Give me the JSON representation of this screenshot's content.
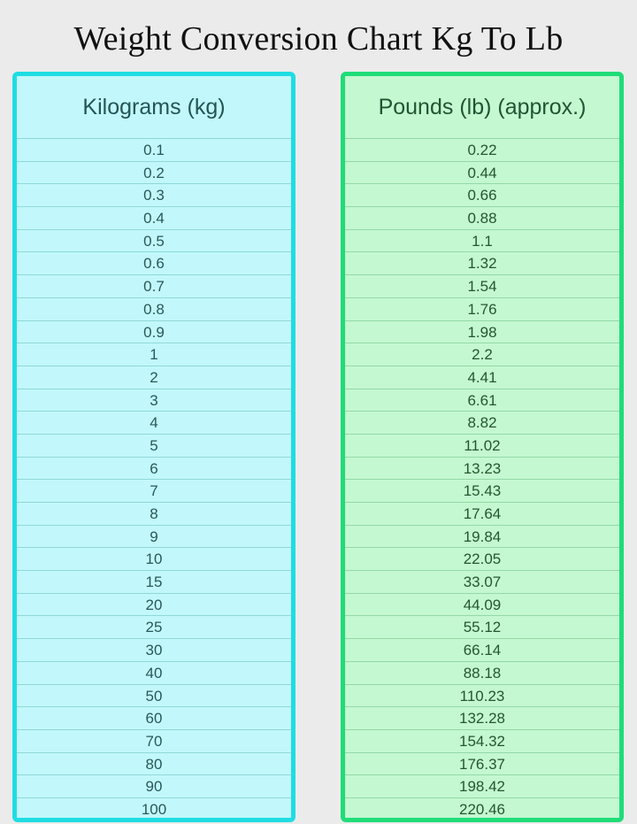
{
  "title": "Weight Conversion Chart Kg To Lb",
  "colors": {
    "kg_border": "#1fdde3",
    "kg_fill": "#c2f8fb",
    "lb_border": "#20dc78",
    "lb_fill": "#c4f8d1"
  },
  "columns": {
    "kg": {
      "header": "Kilograms (kg)",
      "values": [
        "0.1",
        "0.2",
        "0.3",
        "0.4",
        "0.5",
        "0.6",
        "0.7",
        "0.8",
        "0.9",
        "1",
        "2",
        "3",
        "4",
        "5",
        "6",
        "7",
        "8",
        "9",
        "10",
        "15",
        "20",
        "25",
        "30",
        "40",
        "50",
        "60",
        "70",
        "80",
        "90",
        "100"
      ]
    },
    "lb": {
      "header": "Pounds (lb) (approx.)",
      "values": [
        "0.22",
        "0.44",
        "0.66",
        "0.88",
        "1.1",
        "1.32",
        "1.54",
        "1.76",
        "1.98",
        "2.2",
        "4.41",
        "6.61",
        "8.82",
        "11.02",
        "13.23",
        "15.43",
        "17.64",
        "19.84",
        "22.05",
        "33.07",
        "44.09",
        "55.12",
        "66.14",
        "88.18",
        "110.23",
        "132.28",
        "154.32",
        "176.37",
        "198.42",
        "220.46"
      ]
    }
  }
}
